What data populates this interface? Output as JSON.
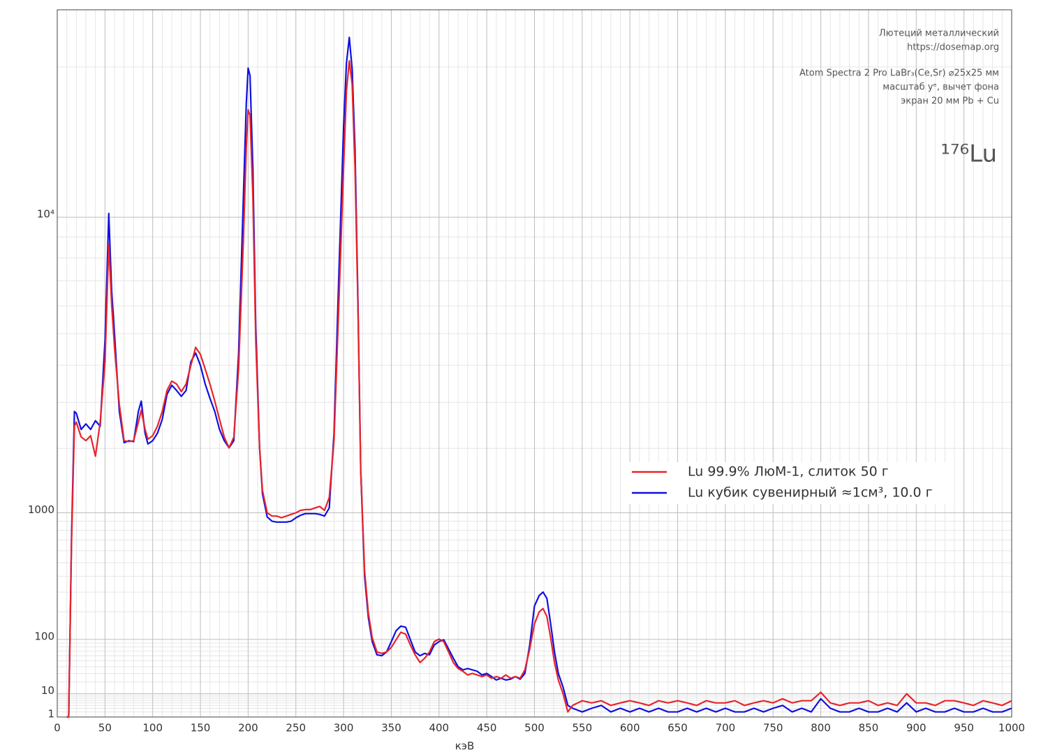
{
  "chart_data": {
    "type": "line",
    "annotations": [
      "Лютеций металлический",
      "https://dosemap.org",
      "Atom Spectra 2 Pro LaBr₃(Ce,Sr) ⌀25x25 мм",
      "масштаб yᵉ, вычет фона",
      "экран 20 мм Pb + Cu"
    ],
    "isotope": "¹⁷⁶Lu",
    "xlabel": "кэВ",
    "xlim": [
      0,
      1000
    ],
    "xticks": [
      0,
      50,
      100,
      150,
      200,
      250,
      300,
      350,
      400,
      450,
      500,
      550,
      600,
      650,
      700,
      750,
      800,
      850,
      900,
      950,
      1000
    ],
    "xminorticks": [
      10,
      20,
      30,
      40,
      60,
      70,
      80,
      90,
      110,
      120,
      130,
      140,
      160,
      170,
      180,
      190,
      210,
      220,
      230,
      240,
      260,
      270,
      280,
      290,
      310,
      320,
      330,
      340,
      360,
      370,
      380,
      390,
      410,
      420,
      430,
      440,
      460,
      470,
      480,
      490,
      510,
      520,
      530,
      540,
      560,
      570,
      580,
      590,
      610,
      620,
      630,
      640,
      660,
      670,
      680,
      690,
      710,
      720,
      730,
      740,
      760,
      770,
      780,
      790,
      810,
      820,
      830,
      840,
      860,
      870,
      880,
      890,
      910,
      920,
      930,
      940,
      960,
      970,
      980,
      990
    ],
    "yscale": "power",
    "yexponent": 0.368,
    "ylim": [
      1,
      25000
    ],
    "yticks": [
      1,
      10,
      100,
      1000,
      {
        "value": 10000,
        "label": "10⁴"
      }
    ],
    "yminorticks": [
      2,
      3,
      4,
      5,
      6,
      7,
      8,
      9,
      20,
      30,
      40,
      50,
      60,
      70,
      80,
      90,
      200,
      300,
      400,
      500,
      600,
      700,
      800,
      900,
      2000,
      3000,
      4000,
      5000,
      6000,
      7000,
      8000,
      9000,
      20000
    ],
    "grid": true,
    "legend": "right",
    "x": [
      10,
      12,
      15,
      18,
      20,
      25,
      30,
      35,
      40,
      45,
      50,
      54,
      57,
      60,
      65,
      70,
      75,
      80,
      85,
      88,
      92,
      95,
      100,
      105,
      110,
      115,
      120,
      125,
      130,
      135,
      140,
      145,
      150,
      155,
      160,
      165,
      170,
      175,
      180,
      185,
      190,
      195,
      198,
      200,
      202,
      205,
      208,
      212,
      215,
      220,
      225,
      230,
      235,
      240,
      245,
      250,
      255,
      260,
      265,
      270,
      275,
      280,
      285,
      290,
      295,
      300,
      303,
      306,
      309,
      312,
      315,
      318,
      322,
      326,
      330,
      335,
      340,
      345,
      350,
      355,
      360,
      365,
      370,
      375,
      380,
      385,
      390,
      395,
      400,
      405,
      410,
      415,
      420,
      425,
      430,
      435,
      440,
      445,
      450,
      455,
      460,
      465,
      470,
      475,
      480,
      485,
      490,
      495,
      500,
      505,
      509,
      513,
      517,
      521,
      525,
      530,
      535,
      540,
      550,
      560,
      570,
      580,
      590,
      600,
      610,
      620,
      630,
      640,
      650,
      660,
      670,
      680,
      690,
      700,
      710,
      720,
      730,
      740,
      750,
      760,
      770,
      780,
      790,
      800,
      810,
      820,
      830,
      840,
      850,
      860,
      870,
      880,
      890,
      900,
      910,
      920,
      930,
      940,
      950,
      960,
      970,
      980,
      990,
      1000
    ],
    "series": [
      {
        "name": "Lu 99.9% ЛюМ-1, слиток 50 г",
        "color": "#e8242a",
        "values": [
          1,
          1,
          696,
          2455,
          2540,
          2225,
          2150,
          2250,
          1855,
          2540,
          4100,
          8650,
          6050,
          4550,
          2950,
          2150,
          2130,
          2150,
          2540,
          2810,
          2380,
          2180,
          2250,
          2450,
          2780,
          3300,
          3550,
          3470,
          3270,
          3470,
          4000,
          4550,
          4330,
          3890,
          3470,
          3030,
          2600,
          2220,
          2010,
          2220,
          3890,
          8820,
          14100,
          16700,
          16300,
          11100,
          4780,
          2010,
          1300,
          1000,
          960,
          960,
          940,
          960,
          980,
          1000,
          1030,
          1040,
          1040,
          1060,
          1080,
          1030,
          1200,
          2150,
          6050,
          12800,
          18100,
          20500,
          18600,
          12800,
          6050,
          1590,
          437,
          194,
          105,
          68,
          65,
          68,
          79,
          99,
          122,
          116,
          85,
          62,
          47,
          55,
          68,
          94,
          101,
          94,
          68,
          47,
          37,
          33,
          28,
          30,
          28,
          26,
          28,
          24,
          26,
          24,
          28,
          24,
          26,
          24,
          35,
          75,
          151,
          200,
          215,
          180,
          105,
          47,
          22,
          10,
          2,
          4,
          6,
          5,
          6,
          4,
          5,
          6,
          5,
          4,
          6,
          5,
          6,
          5,
          4,
          6,
          5,
          5,
          6,
          4,
          5,
          6,
          5,
          7,
          5,
          6,
          6,
          11,
          5,
          4,
          5,
          5,
          6,
          4,
          5,
          4,
          10,
          5,
          5,
          4,
          6,
          6,
          5,
          4,
          6,
          5,
          4,
          6
        ]
      },
      {
        "name": "Lu кубик сувенирный ≈1см³, 10.0 г",
        "color": "#1010e0",
        "values": [
          1,
          1,
          750,
          2780,
          2740,
          2380,
          2500,
          2380,
          2570,
          2450,
          4780,
          10200,
          6600,
          5000,
          2780,
          2110,
          2150,
          2130,
          2780,
          3030,
          2300,
          2085,
          2150,
          2300,
          2600,
          3200,
          3440,
          3300,
          3150,
          3300,
          4100,
          4370,
          4000,
          3470,
          3100,
          2780,
          2380,
          2150,
          2010,
          2150,
          4330,
          11100,
          17100,
          19900,
          19300,
          12750,
          5250,
          2010,
          1250,
          950,
          900,
          890,
          890,
          890,
          900,
          940,
          970,
          990,
          990,
          990,
          980,
          960,
          1060,
          2300,
          7250,
          15500,
          20300,
          22500,
          19800,
          14000,
          6300,
          1590,
          400,
          175,
          94,
          62,
          60,
          68,
          94,
          127,
          143,
          139,
          99,
          68,
          60,
          65,
          62,
          85,
          94,
          99,
          75,
          55,
          40,
          35,
          37,
          35,
          33,
          28,
          30,
          26,
          22,
          24,
          22,
          23,
          26,
          23,
          30,
          85,
          227,
          281,
          300,
          265,
          151,
          68,
          30,
          15,
          4,
          3,
          2,
          3,
          4,
          2,
          3,
          2,
          3,
          2,
          3,
          2,
          2,
          3,
          2,
          3,
          2,
          3,
          2,
          2,
          3,
          2,
          3,
          4,
          2,
          3,
          2,
          7,
          3,
          2,
          2,
          3,
          2,
          2,
          3,
          2,
          5,
          2,
          3,
          2,
          2,
          3,
          2,
          2,
          3,
          2,
          2,
          3
        ]
      }
    ]
  }
}
